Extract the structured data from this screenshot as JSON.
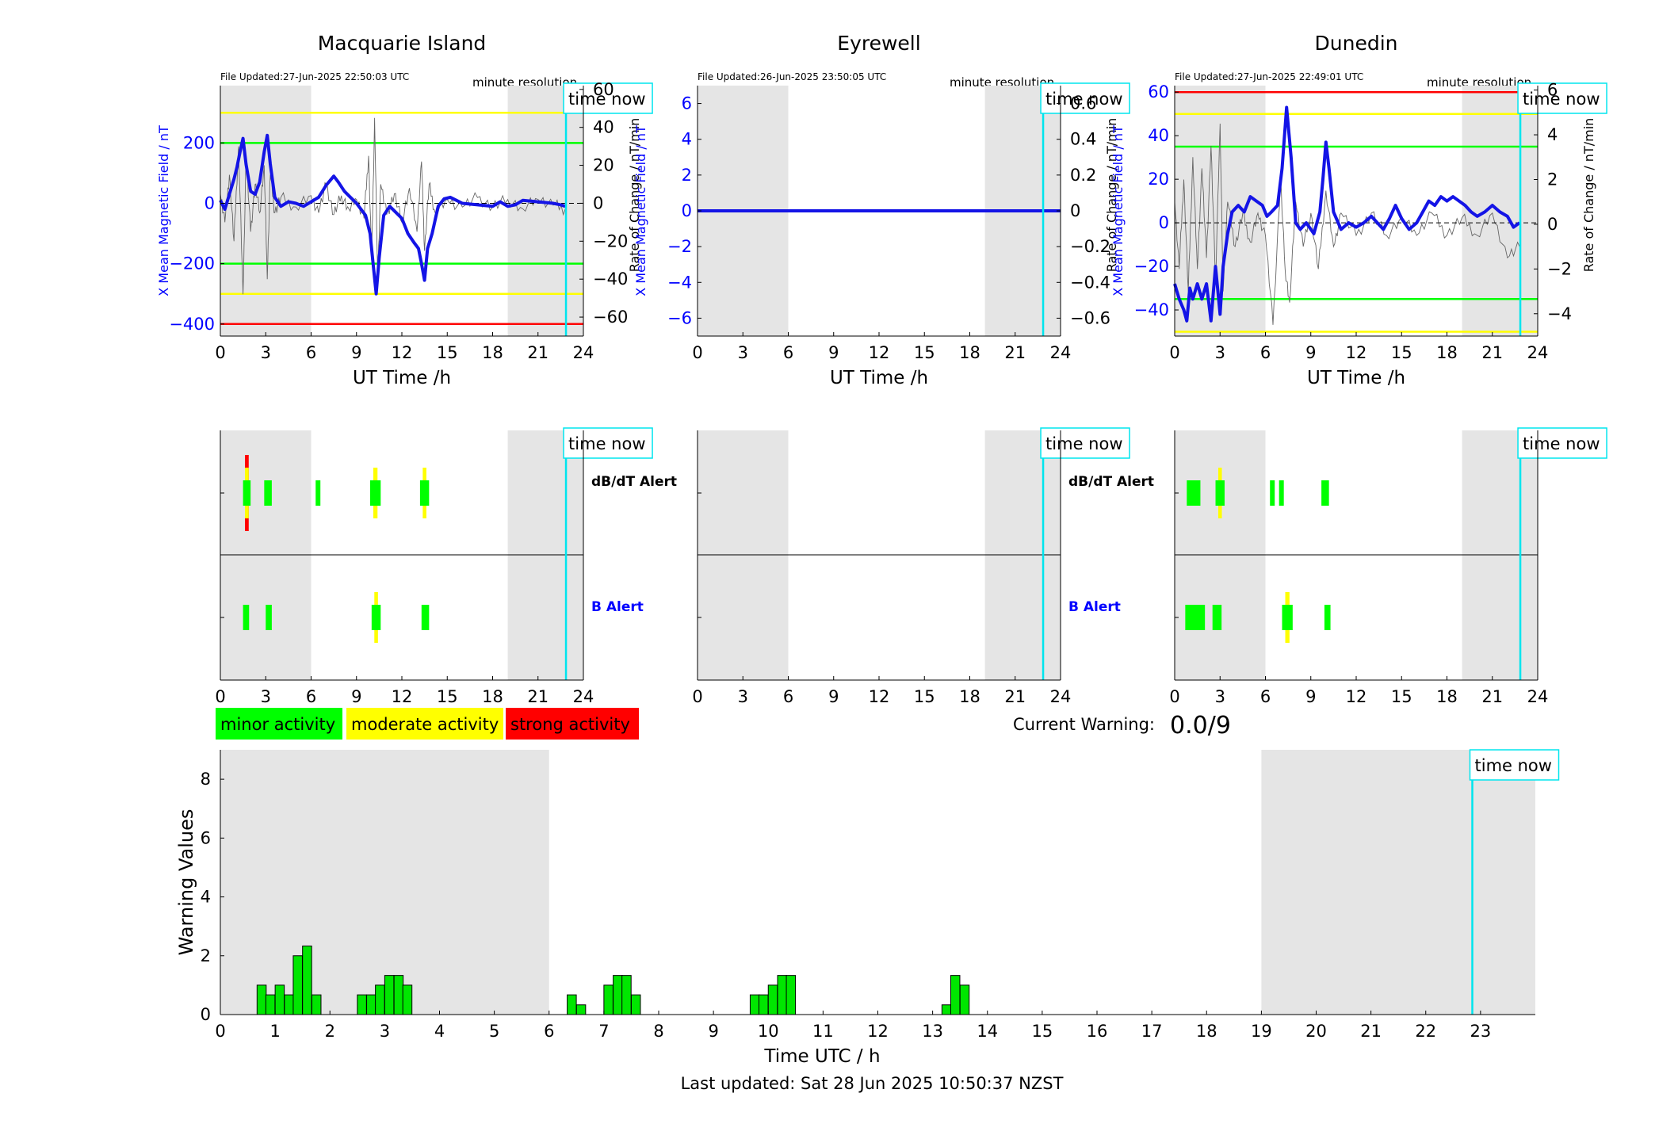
{
  "colors": {
    "b_axis": "#0000ff",
    "b_trace": "#1414e6",
    "dbdt_trace": "#666666",
    "night_shade": "#e5e5e5",
    "time_now": "#00e5ee",
    "minor": "#00ff00",
    "moderate": "#ffff00",
    "strong": "#ff0000",
    "bar_fill": "#00e600"
  },
  "labels": {
    "ut_time": "UT Time /h",
    "b_ylabel": "X Mean Magnetic Field / nT",
    "rate_ylabel": "Rate of Change / nT/min",
    "minute_resolution": "minute resolution",
    "time_now": "time now",
    "dbdt_alert": "dB/dT Alert",
    "b_alert": "B Alert",
    "current_warning_label": "Current Warning:",
    "current_warning_value": "0.0/9",
    "warning_ylabel": "Warning Values",
    "warning_xlabel": "Time UTC / h",
    "last_updated": "Last updated: Sat 28 Jun 2025 10:50:37 NZST"
  },
  "legend": [
    {
      "label": "minor activity",
      "level": "minor"
    },
    {
      "label": "moderate activity",
      "level": "moderate"
    },
    {
      "label": "strong activity",
      "level": "strong"
    }
  ],
  "chart_data": [
    {
      "type": "line",
      "station": "Macquarie Island",
      "file_updated": "File Updated:27-Jun-2025 22:50:03 UTC",
      "xlim": [
        0,
        24
      ],
      "x_ticks": [
        0,
        3,
        6,
        9,
        12,
        15,
        18,
        21,
        24
      ],
      "ylim_left": [
        -440,
        390
      ],
      "left_ticks": [
        -400,
        -200,
        0,
        200
      ],
      "ylim_right": [
        -70,
        62
      ],
      "right_ticks": [
        -60,
        -40,
        -20,
        0,
        20,
        40,
        60
      ],
      "night_shade": [
        [
          0,
          6
        ],
        [
          19,
          24
        ]
      ],
      "time_now": 22.85,
      "thresholds": [
        {
          "value": 300,
          "level": "moderate"
        },
        {
          "value": 200,
          "level": "minor"
        },
        {
          "value": -200,
          "level": "minor"
        },
        {
          "value": -300,
          "level": "moderate"
        },
        {
          "value": -400,
          "level": "strong"
        }
      ],
      "b_series": [
        [
          0,
          10
        ],
        [
          0.3,
          -20
        ],
        [
          0.6,
          30
        ],
        [
          0.9,
          80
        ],
        [
          1.1,
          120
        ],
        [
          1.3,
          170
        ],
        [
          1.5,
          215
        ],
        [
          1.7,
          130
        ],
        [
          2,
          40
        ],
        [
          2.3,
          30
        ],
        [
          2.6,
          70
        ],
        [
          2.9,
          170
        ],
        [
          3.1,
          225
        ],
        [
          3.3,
          130
        ],
        [
          3.6,
          20
        ],
        [
          4,
          -10
        ],
        [
          4.5,
          5
        ],
        [
          5,
          0
        ],
        [
          5.5,
          -10
        ],
        [
          6,
          5
        ],
        [
          6.5,
          20
        ],
        [
          7,
          60
        ],
        [
          7.5,
          90
        ],
        [
          7.8,
          70
        ],
        [
          8.2,
          40
        ],
        [
          8.6,
          20
        ],
        [
          9,
          0
        ],
        [
          9.3,
          -20
        ],
        [
          9.6,
          -40
        ],
        [
          9.9,
          -100
        ],
        [
          10.1,
          -200
        ],
        [
          10.3,
          -300
        ],
        [
          10.5,
          -180
        ],
        [
          10.8,
          -40
        ],
        [
          11.2,
          -10
        ],
        [
          11.6,
          -30
        ],
        [
          12,
          -50
        ],
        [
          12.4,
          -100
        ],
        [
          12.8,
          -130
        ],
        [
          13.1,
          -150
        ],
        [
          13.3,
          -200
        ],
        [
          13.5,
          -255
        ],
        [
          13.7,
          -150
        ],
        [
          14,
          -100
        ],
        [
          14.4,
          -10
        ],
        [
          14.8,
          15
        ],
        [
          15.2,
          20
        ],
        [
          15.6,
          10
        ],
        [
          16,
          0
        ],
        [
          17,
          -5
        ],
        [
          18,
          -10
        ],
        [
          18.5,
          5
        ],
        [
          19,
          -10
        ],
        [
          19.5,
          -5
        ],
        [
          20,
          10
        ],
        [
          21,
          5
        ],
        [
          22,
          0
        ],
        [
          22.5,
          -5
        ],
        [
          22.8,
          -10
        ]
      ],
      "rate_series": [
        [
          0,
          5
        ],
        [
          0.3,
          -10
        ],
        [
          0.6,
          15
        ],
        [
          0.9,
          -20
        ],
        [
          1.2,
          30
        ],
        [
          1.5,
          -48
        ],
        [
          1.7,
          25
        ],
        [
          2,
          -15
        ],
        [
          2.3,
          10
        ],
        [
          2.6,
          -5
        ],
        [
          2.9,
          20
        ],
        [
          3.1,
          -40
        ],
        [
          3.3,
          15
        ],
        [
          3.6,
          -5
        ],
        [
          4,
          3
        ],
        [
          5,
          -2
        ],
        [
          6,
          4
        ],
        [
          6.5,
          -5
        ],
        [
          7,
          10
        ],
        [
          7.5,
          -6
        ],
        [
          8,
          4
        ],
        [
          8.5,
          -3
        ],
        [
          9,
          2
        ],
        [
          9.5,
          -8
        ],
        [
          9.8,
          25
        ],
        [
          10,
          -30
        ],
        [
          10.2,
          45
        ],
        [
          10.4,
          -40
        ],
        [
          10.6,
          10
        ],
        [
          11,
          -6
        ],
        [
          11.5,
          5
        ],
        [
          12,
          -10
        ],
        [
          12.5,
          8
        ],
        [
          13,
          -15
        ],
        [
          13.3,
          22
        ],
        [
          13.5,
          -25
        ],
        [
          13.8,
          10
        ],
        [
          14.2,
          -5
        ],
        [
          15,
          2
        ],
        [
          16,
          -2
        ],
        [
          17,
          3
        ],
        [
          18,
          -2
        ],
        [
          19,
          2
        ],
        [
          20,
          -3
        ],
        [
          21,
          2
        ],
        [
          22,
          -1
        ],
        [
          22.8,
          -3
        ]
      ]
    },
    {
      "type": "line",
      "station": "Eyrewell",
      "file_updated": "File Updated:26-Jun-2025 23:50:05 UTC",
      "xlim": [
        0,
        24
      ],
      "x_ticks": [
        0,
        3,
        6,
        9,
        12,
        15,
        18,
        21,
        24
      ],
      "ylim_left": [
        -7,
        7
      ],
      "left_ticks": [
        -6,
        -4,
        -2,
        0,
        2,
        4,
        6
      ],
      "ylim_right": [
        -0.7,
        0.7
      ],
      "right_ticks": [
        -0.6,
        -0.4,
        -0.2,
        0,
        0.2,
        0.4,
        0.6
      ],
      "night_shade": [
        [
          0,
          6
        ],
        [
          19,
          24
        ]
      ],
      "time_now": 22.85,
      "thresholds": [],
      "b_series": [
        [
          0,
          0
        ],
        [
          24,
          0
        ]
      ],
      "rate_series": []
    },
    {
      "type": "line",
      "station": "Dunedin",
      "file_updated": "File Updated:27-Jun-2025 22:49:01 UTC",
      "xlim": [
        0,
        24
      ],
      "x_ticks": [
        0,
        3,
        6,
        9,
        12,
        15,
        18,
        21,
        24
      ],
      "ylim_left": [
        -52,
        63
      ],
      "left_ticks": [
        -40,
        -20,
        0,
        20,
        40,
        60
      ],
      "ylim_right": [
        -5,
        6.2
      ],
      "right_ticks": [
        -4,
        -2,
        0,
        2,
        4,
        6
      ],
      "night_shade": [
        [
          0,
          6
        ],
        [
          19,
          24
        ]
      ],
      "time_now": 22.85,
      "thresholds": [
        {
          "value": 60,
          "level": "strong"
        },
        {
          "value": 50,
          "level": "moderate"
        },
        {
          "value": 35,
          "level": "minor"
        },
        {
          "value": -35,
          "level": "minor"
        },
        {
          "value": -50,
          "level": "moderate"
        }
      ],
      "b_series": [
        [
          0,
          -28
        ],
        [
          0.3,
          -35
        ],
        [
          0.6,
          -40
        ],
        [
          0.8,
          -45
        ],
        [
          1,
          -30
        ],
        [
          1.2,
          -35
        ],
        [
          1.5,
          -28
        ],
        [
          1.8,
          -35
        ],
        [
          2.1,
          -28
        ],
        [
          2.4,
          -45
        ],
        [
          2.7,
          -20
        ],
        [
          3,
          -42
        ],
        [
          3.2,
          -20
        ],
        [
          3.5,
          -5
        ],
        [
          3.8,
          5
        ],
        [
          4.2,
          8
        ],
        [
          4.6,
          5
        ],
        [
          5,
          12
        ],
        [
          5.4,
          10
        ],
        [
          5.8,
          8
        ],
        [
          6.1,
          3
        ],
        [
          6.4,
          5
        ],
        [
          6.8,
          8
        ],
        [
          7.1,
          25
        ],
        [
          7.4,
          53
        ],
        [
          7.7,
          30
        ],
        [
          8,
          0
        ],
        [
          8.3,
          -3
        ],
        [
          8.7,
          0
        ],
        [
          9.2,
          -5
        ],
        [
          9.6,
          5
        ],
        [
          9.8,
          20
        ],
        [
          10,
          37
        ],
        [
          10.2,
          25
        ],
        [
          10.5,
          5
        ],
        [
          11,
          -3
        ],
        [
          11.5,
          0
        ],
        [
          12,
          -2
        ],
        [
          12.5,
          0
        ],
        [
          13,
          3
        ],
        [
          13.4,
          0
        ],
        [
          13.8,
          -3
        ],
        [
          14.2,
          2
        ],
        [
          14.6,
          8
        ],
        [
          15,
          2
        ],
        [
          15.5,
          -3
        ],
        [
          16,
          0
        ],
        [
          16.4,
          5
        ],
        [
          16.8,
          10
        ],
        [
          17.2,
          8
        ],
        [
          17.6,
          12
        ],
        [
          18,
          10
        ],
        [
          18.4,
          12
        ],
        [
          18.8,
          10
        ],
        [
          19.2,
          8
        ],
        [
          19.6,
          5
        ],
        [
          20,
          3
        ],
        [
          20.5,
          5
        ],
        [
          21,
          8
        ],
        [
          21.5,
          5
        ],
        [
          22,
          3
        ],
        [
          22.4,
          -2
        ],
        [
          22.8,
          0
        ]
      ],
      "rate_series": [
        [
          0,
          1
        ],
        [
          0.3,
          -2
        ],
        [
          0.6,
          2
        ],
        [
          0.9,
          -3
        ],
        [
          1.2,
          3
        ],
        [
          1.5,
          -2
        ],
        [
          1.8,
          2.5
        ],
        [
          2.1,
          -1.5
        ],
        [
          2.4,
          3.5
        ],
        [
          2.7,
          -2.5
        ],
        [
          3,
          4.5
        ],
        [
          3.2,
          -3
        ],
        [
          3.5,
          1
        ],
        [
          4,
          -1
        ],
        [
          4.5,
          0.5
        ],
        [
          5,
          -0.8
        ],
        [
          5.5,
          0.5
        ],
        [
          6,
          -0.5
        ],
        [
          6.5,
          -4.5
        ],
        [
          7,
          2
        ],
        [
          7.3,
          -2
        ],
        [
          7.6,
          -3.5
        ],
        [
          8,
          1
        ],
        [
          8.5,
          -1
        ],
        [
          9,
          0.5
        ],
        [
          9.5,
          -2
        ],
        [
          10,
          1.5
        ],
        [
          10.5,
          -1
        ],
        [
          11,
          0.5
        ],
        [
          12,
          -0.5
        ],
        [
          13,
          0.5
        ],
        [
          14,
          -0.5
        ],
        [
          15,
          0.3
        ],
        [
          16,
          -0.5
        ],
        [
          17,
          0.5
        ],
        [
          18,
          -0.5
        ],
        [
          19,
          0.3
        ],
        [
          20,
          -0.5
        ],
        [
          21,
          0.5
        ],
        [
          22,
          -1.5
        ],
        [
          22.8,
          -1
        ]
      ]
    },
    {
      "type": "bar",
      "name": "alerts",
      "stations": [
        {
          "station": "Macquarie Island",
          "dbdt_alerts": [
            {
              "start": 1.5,
              "end": 2.0,
              "level": "strong"
            },
            {
              "start": 2.9,
              "end": 3.4,
              "level": "minor"
            },
            {
              "start": 6.3,
              "end": 6.6,
              "level": "minor"
            },
            {
              "start": 9.9,
              "end": 10.6,
              "level": "moderate"
            },
            {
              "start": 13.2,
              "end": 13.8,
              "level": "moderate"
            }
          ],
          "b_alerts": [
            {
              "start": 1.5,
              "end": 1.9,
              "level": "minor"
            },
            {
              "start": 3.0,
              "end": 3.4,
              "level": "minor"
            },
            {
              "start": 10.0,
              "end": 10.6,
              "level": "moderate"
            },
            {
              "start": 13.3,
              "end": 13.8,
              "level": "minor"
            }
          ]
        },
        {
          "station": "Eyrewell",
          "dbdt_alerts": [],
          "b_alerts": []
        },
        {
          "station": "Dunedin",
          "dbdt_alerts": [
            {
              "start": 0.8,
              "end": 1.7,
              "level": "minor"
            },
            {
              "start": 2.7,
              "end": 3.3,
              "level": "moderate"
            },
            {
              "start": 6.3,
              "end": 6.6,
              "level": "minor"
            },
            {
              "start": 6.9,
              "end": 7.2,
              "level": "minor"
            },
            {
              "start": 9.7,
              "end": 10.2,
              "level": "minor"
            }
          ],
          "b_alerts": [
            {
              "start": 0.7,
              "end": 2.0,
              "level": "minor"
            },
            {
              "start": 2.5,
              "end": 3.1,
              "level": "minor"
            },
            {
              "start": 7.1,
              "end": 7.8,
              "level": "moderate"
            },
            {
              "start": 9.9,
              "end": 10.3,
              "level": "minor"
            }
          ]
        }
      ]
    },
    {
      "type": "bar",
      "name": "warning_values",
      "xlim": [
        0,
        24
      ],
      "x_ticks": [
        0,
        1,
        2,
        3,
        4,
        5,
        6,
        7,
        8,
        9,
        10,
        11,
        12,
        13,
        14,
        15,
        16,
        17,
        18,
        19,
        20,
        21,
        22,
        23
      ],
      "ylim": [
        0,
        9
      ],
      "y_ticks": [
        0,
        2,
        4,
        6,
        8
      ],
      "night_shade": [
        [
          0,
          6
        ],
        [
          19,
          24
        ]
      ],
      "time_now": 22.85,
      "bin_width": 0.1667,
      "bars": [
        [
          0.67,
          1
        ],
        [
          0.83,
          0.67
        ],
        [
          1.0,
          1
        ],
        [
          1.17,
          0.67
        ],
        [
          1.33,
          2
        ],
        [
          1.5,
          2.33
        ],
        [
          1.67,
          0.67
        ],
        [
          2.5,
          0.67
        ],
        [
          2.67,
          0.67
        ],
        [
          2.83,
          1
        ],
        [
          3.0,
          1.33
        ],
        [
          3.17,
          1.33
        ],
        [
          3.33,
          1
        ],
        [
          6.33,
          0.67
        ],
        [
          6.5,
          0.33
        ],
        [
          7.0,
          1
        ],
        [
          7.17,
          1.33
        ],
        [
          7.33,
          1.33
        ],
        [
          7.5,
          0.67
        ],
        [
          9.67,
          0.67
        ],
        [
          9.83,
          0.67
        ],
        [
          10.0,
          1
        ],
        [
          10.17,
          1.33
        ],
        [
          10.33,
          1.33
        ],
        [
          13.17,
          0.33
        ],
        [
          13.33,
          1.33
        ],
        [
          13.5,
          1
        ]
      ]
    }
  ]
}
